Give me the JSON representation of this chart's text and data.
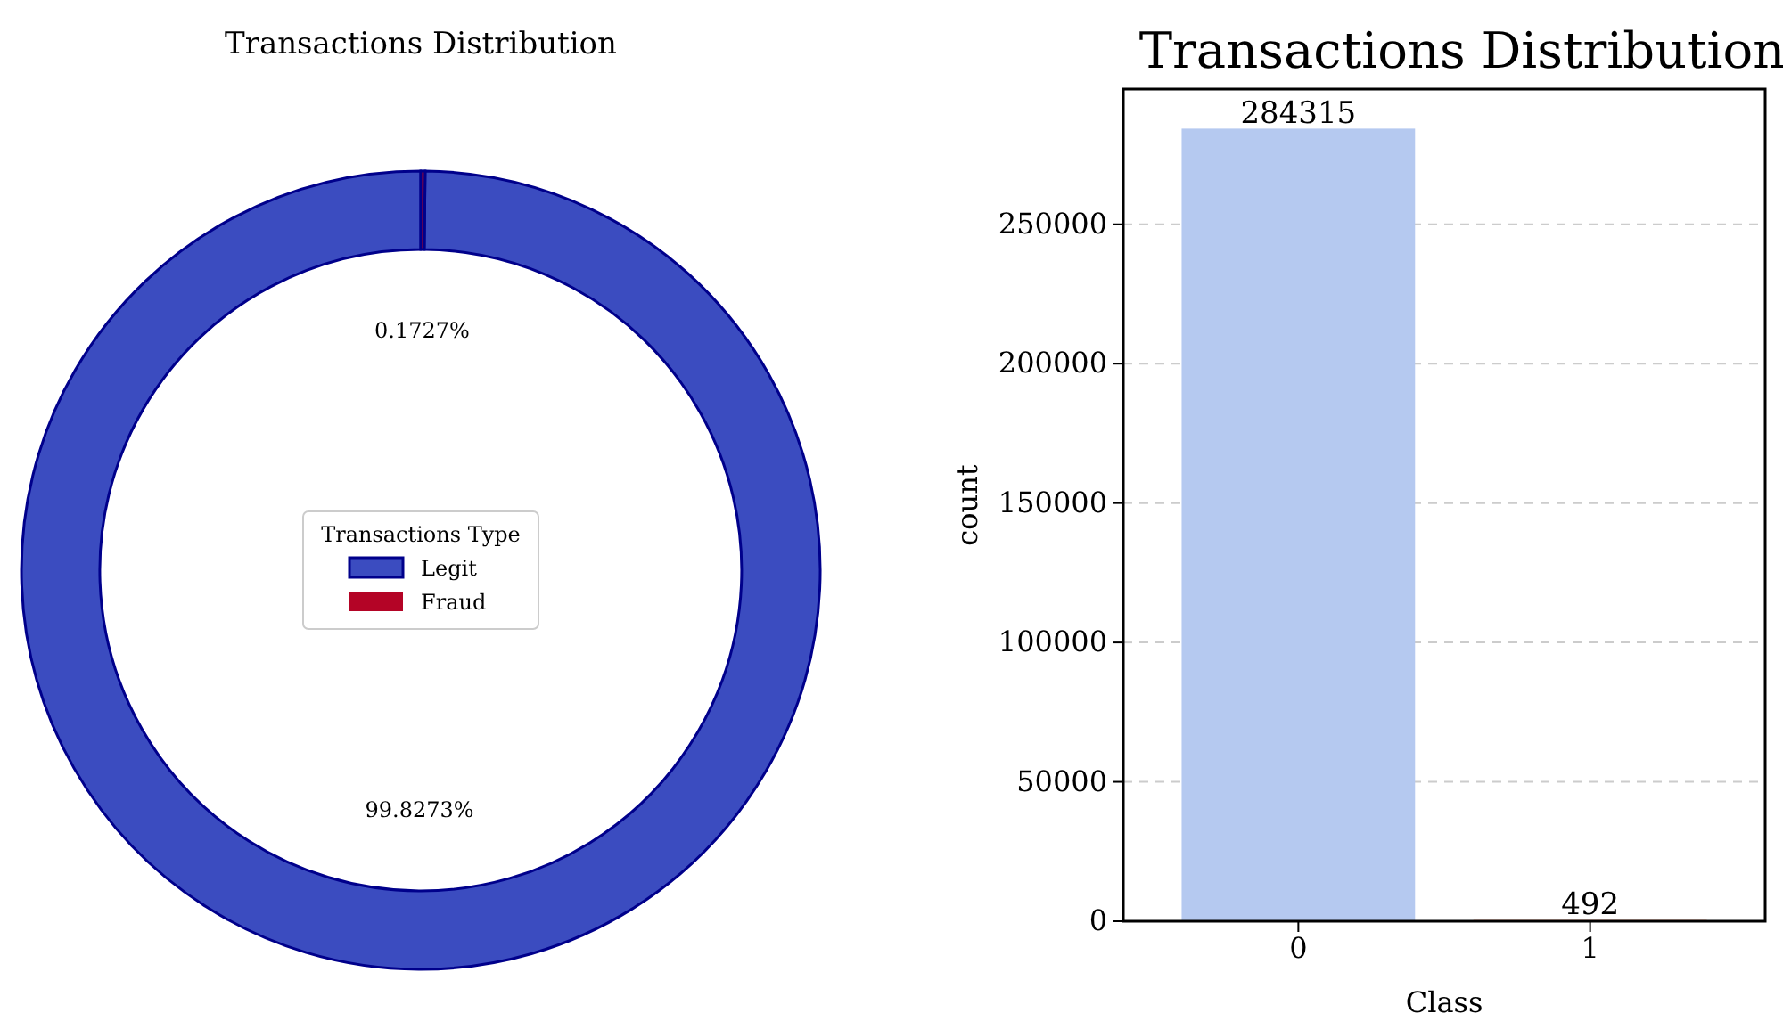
{
  "chart_data": [
    {
      "type": "donut",
      "title": "Transactions Distribution",
      "categories": [
        "Legit",
        "Fraud"
      ],
      "values": [
        99.8273,
        0.1727
      ],
      "colors": [
        "#3b4cc0",
        "#b40426"
      ],
      "data_labels": true,
      "value_labels": [
        "99.8273%",
        "0.1727%"
      ],
      "legend": "center",
      "legend_title": "Transactions Type"
    },
    {
      "type": "bar",
      "title": "Transactions Distribution",
      "categories": [
        "0",
        "1"
      ],
      "values": [
        284315,
        492
      ],
      "colors": [
        "#b5c9f0",
        "#f0b09a"
      ],
      "data_labels": true,
      "xlabel": "Class",
      "ylabel": "count",
      "ylim": [
        0,
        298500
      ],
      "yticks": [
        0,
        50000,
        100000,
        150000,
        200000,
        250000
      ],
      "grid": "y"
    }
  ]
}
